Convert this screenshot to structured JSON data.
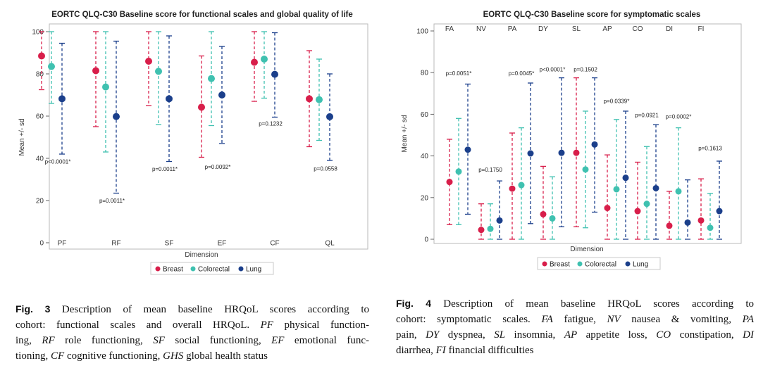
{
  "chart_data": [
    {
      "type": "errorbar",
      "title": "EORTC QLQ-C30 Baseline score for functional scales and global quality of life",
      "xlabel": "Dimension",
      "ylabel": "Mean +/- sd",
      "ylim": [
        0,
        100
      ],
      "yticks": [
        0,
        20,
        40,
        60,
        80,
        100
      ],
      "grid": false,
      "legend": "bottom-center",
      "categories": [
        "PF",
        "RF",
        "SF",
        "EF",
        "CF",
        "QL"
      ],
      "series": [
        {
          "name": "Breast",
          "color": "#d81e4a",
          "mean": [
            88.5,
            81.5,
            86,
            64.2,
            85.5,
            68.2
          ],
          "low": [
            72.5,
            55,
            65,
            40.5,
            67,
            45.5
          ],
          "high": [
            100,
            100,
            100,
            88.5,
            100,
            91
          ]
        },
        {
          "name": "Colorectal",
          "color": "#3fc1b0",
          "mean": [
            83.5,
            73.8,
            81.2,
            77.8,
            87,
            67.8
          ],
          "low": [
            66,
            43,
            56,
            55.5,
            68.5,
            48.5
          ],
          "high": [
            100,
            100,
            100,
            100,
            100,
            87
          ]
        },
        {
          "name": "Lung",
          "color": "#1b3f8b",
          "mean": [
            68.2,
            59.8,
            68.2,
            70,
            79.8,
            59.7
          ],
          "low": [
            42,
            23.5,
            38.5,
            47,
            59.5,
            39
          ],
          "high": [
            94.5,
            95.5,
            98,
            93,
            99.5,
            80
          ]
        }
      ],
      "annotations": [
        {
          "category": "PF",
          "text": "p<0.0001*",
          "y": 37.5
        },
        {
          "category": "RF",
          "text": "p=0.0011*",
          "y": 19
        },
        {
          "category": "SF",
          "text": "p=0.0011*",
          "y": 34
        },
        {
          "category": "EF",
          "text": "p=0.0092*",
          "y": 35
        },
        {
          "category": "CF",
          "text": "p=0.1232",
          "y": 55.5
        },
        {
          "category": "QL",
          "text": "p=0.0558",
          "y": 34.2
        }
      ]
    },
    {
      "type": "errorbar",
      "title": "EORTC QLQ-C30 Baseline score for symptomatic scales",
      "xlabel": "Dimension",
      "ylabel": "Mean +/- sd",
      "ylim": [
        0,
        100
      ],
      "yticks": [
        0,
        20,
        40,
        60,
        80,
        100
      ],
      "grid": false,
      "legend": "bottom-center",
      "categories": [
        "FA",
        "NV",
        "PA",
        "DY",
        "SL",
        "AP",
        "CO",
        "DI",
        "FI"
      ],
      "series": [
        {
          "name": "Breast",
          "color": "#d81e4a",
          "mean": [
            27.5,
            4.5,
            24.3,
            12,
            41.5,
            15,
            13.5,
            6.5,
            9
          ],
          "low": [
            7,
            0,
            0,
            0,
            6,
            0,
            0,
            0,
            0
          ],
          "high": [
            48,
            17,
            51,
            35,
            77.5,
            40.5,
            37,
            23,
            29
          ]
        },
        {
          "name": "Colorectal",
          "color": "#3fc1b0",
          "mean": [
            32.5,
            5,
            26,
            10,
            33.5,
            24,
            17,
            23,
            5.5
          ],
          "low": [
            7,
            0,
            0,
            0,
            5.5,
            0,
            0,
            0,
            0
          ],
          "high": [
            58,
            17,
            53.5,
            30,
            61.5,
            57.5,
            44.5,
            53.5,
            22
          ]
        },
        {
          "name": "Lung",
          "color": "#1b3f8b",
          "mean": [
            43,
            9,
            41.2,
            41.5,
            45.5,
            29.5,
            24.5,
            8,
            13.5
          ],
          "low": [
            12,
            0,
            7.5,
            6,
            13,
            0,
            0,
            0,
            0
          ],
          "high": [
            74.5,
            28,
            75,
            77.5,
            77.5,
            61.5,
            55,
            28.5,
            37.5
          ]
        }
      ],
      "annotations": [
        {
          "category": "FA",
          "text": "p=0.0051*",
          "y": 78.7
        },
        {
          "category": "NV",
          "text": "p=0.1750",
          "y": 32.5
        },
        {
          "category": "PA",
          "text": "p=0.0045*",
          "y": 78.7
        },
        {
          "category": "DY",
          "text": "p<0.0001*",
          "y": 80.6
        },
        {
          "category": "SL",
          "text": "p=0.1502",
          "y": 80.6
        },
        {
          "category": "AP",
          "text": "p=0.0339*",
          "y": 65.3
        },
        {
          "category": "CO",
          "text": "p=0.0921",
          "y": 58.6
        },
        {
          "category": "DI",
          "text": "p=0.0002*",
          "y": 57.9
        },
        {
          "category": "FI",
          "text": "p=0.1613",
          "y": 42.8
        }
      ]
    }
  ],
  "captions": {
    "fig3": {
      "label": "Fig. 3",
      "lines": [
        [
          {
            "t": " Description of mean baseline HRQoL scores according to"
          }
        ],
        [
          {
            "t": "cohort: functional scales and overall HRQoL. "
          },
          {
            "t": "PF",
            "i": true
          },
          {
            "t": " physical function-"
          }
        ],
        [
          {
            "t": "ing, "
          },
          {
            "t": "RF",
            "i": true
          },
          {
            "t": " role functioning, "
          },
          {
            "t": "SF",
            "i": true
          },
          {
            "t": " social functioning, "
          },
          {
            "t": "EF",
            "i": true
          },
          {
            "t": " emotional func-"
          }
        ],
        [
          {
            "t": "tioning, "
          },
          {
            "t": "CF",
            "i": true
          },
          {
            "t": " cognitive functioning, "
          },
          {
            "t": "GHS",
            "i": true
          },
          {
            "t": " global health status"
          }
        ]
      ]
    },
    "fig4": {
      "label": "Fig. 4",
      "lines": [
        [
          {
            "t": " Description of mean baseline HRQoL scores according to"
          }
        ],
        [
          {
            "t": "cohort: symptomatic scales. "
          },
          {
            "t": "FA",
            "i": true
          },
          {
            "t": " fatigue, "
          },
          {
            "t": "NV",
            "i": true
          },
          {
            "t": " nausea & vomiting, "
          },
          {
            "t": "PA",
            "i": true
          }
        ],
        [
          {
            "t": "pain, "
          },
          {
            "t": "DY",
            "i": true
          },
          {
            "t": " dyspnea, "
          },
          {
            "t": "SL",
            "i": true
          },
          {
            "t": " insomnia, "
          },
          {
            "t": "AP",
            "i": true
          },
          {
            "t": " appetite loss, "
          },
          {
            "t": "CO",
            "i": true
          },
          {
            "t": " constipation, "
          },
          {
            "t": "DI",
            "i": true
          }
        ],
        [
          {
            "t": "diarrhea, "
          },
          {
            "t": "FI",
            "i": true
          },
          {
            "t": " financial difficulties"
          }
        ]
      ]
    }
  }
}
